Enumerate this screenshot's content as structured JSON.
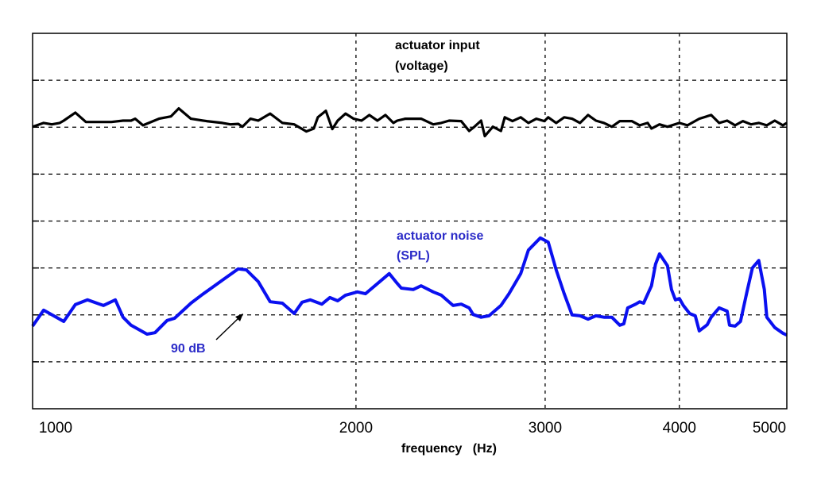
{
  "chart_data": {
    "type": "line",
    "xlabel": "frequency   (Hz)",
    "xscale": "log",
    "xlim": [
      1000,
      5036
    ],
    "ylim": [
      0,
      8
    ],
    "xticks": [
      1000,
      2000,
      3000,
      4000,
      5000
    ],
    "xtick_labels": [
      "1000",
      "2000",
      "3000",
      "4000",
      "5000"
    ],
    "grid": true,
    "colors": {
      "input": "#000000",
      "noise": "#0a10f0",
      "noise_label": "#2b2bc8"
    },
    "annotations": {
      "input_line1": "actuator input",
      "input_line2": "(voltage)",
      "noise_line1": "actuator noise",
      "noise_line2": "(SPL)",
      "ref": "90 dB"
    },
    "series": [
      {
        "id": "input",
        "x": [
          1000,
          1024,
          1042,
          1060,
          1069,
          1096,
          1121,
          1184,
          1214,
          1235,
          1246,
          1267,
          1311,
          1345,
          1368,
          1404,
          1452,
          1502,
          1528,
          1554,
          1568,
          1595,
          1622,
          1664,
          1708,
          1752,
          1798,
          1827,
          1843,
          1875,
          1901,
          1923,
          1956,
          1990,
          2024,
          2058,
          2094,
          2130,
          2167,
          2185,
          2223,
          2300,
          2360,
          2401,
          2442,
          2506,
          2549,
          2578,
          2615,
          2636,
          2682,
          2729,
          2751,
          2797,
          2847,
          2894,
          2944,
          2995,
          3020,
          3072,
          3125,
          3178,
          3233,
          3289,
          3345,
          3403,
          3461,
          3521,
          3612,
          3674,
          3737,
          3768,
          3833,
          3899,
          4000,
          4070,
          4174,
          4282,
          4356,
          4431,
          4507,
          4583,
          4664,
          4742,
          4824,
          4907,
          4993,
          5036
        ],
        "y": [
          6.01,
          6.09,
          6.06,
          6.09,
          6.14,
          6.31,
          6.11,
          6.11,
          6.14,
          6.14,
          6.18,
          6.04,
          6.18,
          6.23,
          6.4,
          6.18,
          6.13,
          6.09,
          6.06,
          6.07,
          6.01,
          6.18,
          6.14,
          6.29,
          6.09,
          6.06,
          5.91,
          5.97,
          6.21,
          6.35,
          5.96,
          6.14,
          6.29,
          6.18,
          6.14,
          6.26,
          6.14,
          6.26,
          6.09,
          6.14,
          6.18,
          6.18,
          6.06,
          6.09,
          6.14,
          6.13,
          5.92,
          6.01,
          6.14,
          5.81,
          6.01,
          5.92,
          6.21,
          6.13,
          6.21,
          6.09,
          6.18,
          6.13,
          6.21,
          6.09,
          6.21,
          6.18,
          6.09,
          6.26,
          6.14,
          6.09,
          6.01,
          6.13,
          6.13,
          6.04,
          6.09,
          5.97,
          6.06,
          6.01,
          6.09,
          6.04,
          6.18,
          6.26,
          6.09,
          6.14,
          6.04,
          6.13,
          6.06,
          6.09,
          6.04,
          6.14,
          6.04,
          6.09
        ]
      },
      {
        "id": "noise",
        "x": [
          1000,
          1024,
          1069,
          1096,
          1125,
          1164,
          1194,
          1214,
          1235,
          1278,
          1300,
          1334,
          1356,
          1404,
          1440,
          1477,
          1502,
          1554,
          1581,
          1622,
          1664,
          1708,
          1752,
          1782,
          1813,
          1859,
          1891,
          1923,
          1956,
          2006,
          2041,
          2148,
          2185,
          2204,
          2261,
          2300,
          2360,
          2401,
          2463,
          2506,
          2549,
          2571,
          2615,
          2660,
          2729,
          2776,
          2847,
          2894,
          2969,
          3020,
          3072,
          3125,
          3178,
          3233,
          3289,
          3345,
          3403,
          3461,
          3521,
          3551,
          3581,
          3643,
          3674,
          3705,
          3768,
          3801,
          3833,
          3899,
          3933,
          3966,
          4000,
          4034,
          4089,
          4139,
          4174,
          4246,
          4282,
          4356,
          4431,
          4454,
          4507,
          4560,
          4623,
          4678,
          4742,
          4799,
          4824,
          4907,
          4993,
          5036
        ],
        "y": [
          1.76,
          2.1,
          1.86,
          2.22,
          2.32,
          2.2,
          2.32,
          1.95,
          1.78,
          1.59,
          1.62,
          1.88,
          1.93,
          2.25,
          2.44,
          2.62,
          2.74,
          2.98,
          2.96,
          2.71,
          2.28,
          2.25,
          2.03,
          2.27,
          2.32,
          2.23,
          2.37,
          2.3,
          2.42,
          2.49,
          2.45,
          2.88,
          2.67,
          2.57,
          2.54,
          2.62,
          2.49,
          2.42,
          2.2,
          2.23,
          2.15,
          2.01,
          1.95,
          1.98,
          2.2,
          2.45,
          2.88,
          3.38,
          3.64,
          3.55,
          2.96,
          2.45,
          2.0,
          1.98,
          1.91,
          1.98,
          1.95,
          1.95,
          1.78,
          1.81,
          2.15,
          2.23,
          2.28,
          2.25,
          2.62,
          3.08,
          3.3,
          3.05,
          2.54,
          2.32,
          2.35,
          2.2,
          2.03,
          1.98,
          1.66,
          1.79,
          1.95,
          2.15,
          2.08,
          1.78,
          1.76,
          1.86,
          2.49,
          3.0,
          3.16,
          2.54,
          1.95,
          1.73,
          1.61,
          1.57
        ]
      }
    ]
  }
}
